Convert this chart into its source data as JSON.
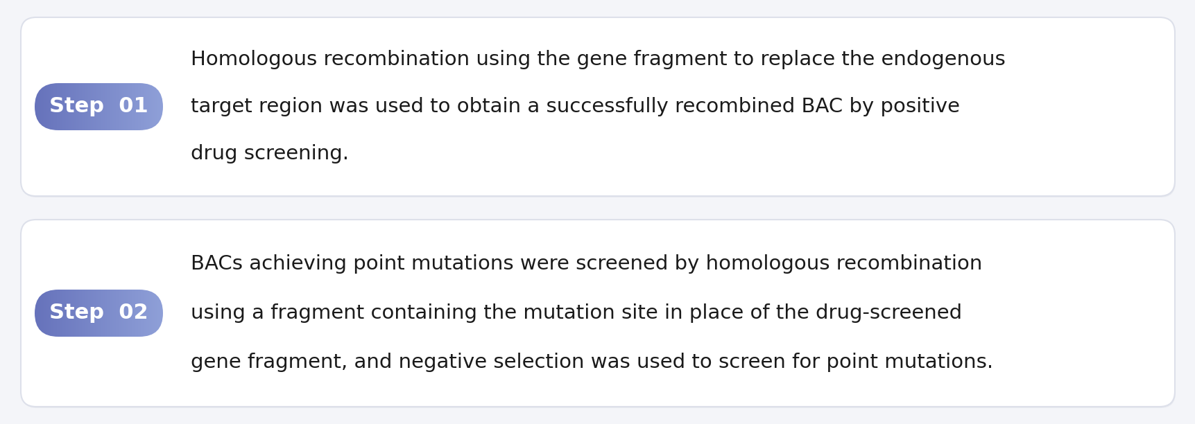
{
  "background_color": "#f4f5f9",
  "card_color": "#ffffff",
  "card_edge_color": "#dde0ea",
  "step_label_1": "Step  01",
  "step_label_2": "Step  02",
  "step_grad_left": "#6672bb",
  "step_grad_right": "#8fa0d8",
  "step_text_color": "#ffffff",
  "step_font_size": 22,
  "text_color": "#1a1a1a",
  "text_font_size": 21,
  "text_line1_1": "Homologous recombination using the gene fragment to replace the endogenous",
  "text_line2_1": "target region was used to obtain a successfully recombined BAC by positive",
  "text_line3_1": "drug screening.",
  "text_line1_2": "BACs achieving point mutations were screened by homologous recombination",
  "text_line2_2": "using a fragment containing the mutation site in place of the drug-screened",
  "text_line3_2": "gene fragment, and negative selection was used to screen for point mutations."
}
